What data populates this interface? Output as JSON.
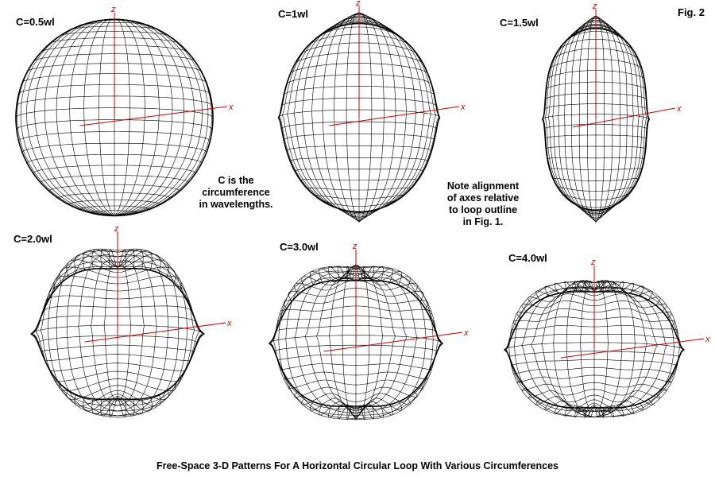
{
  "figure_label": "Fig. 2",
  "caption": "Free-Space 3-D Patterns For A Horizontal Circular Loop With Various Circumferences",
  "note_left": [
    "C is the",
    "circumference",
    "in wavelengths."
  ],
  "note_right": [
    "Note alignment",
    "of axes relative",
    "to loop outline",
    "in Fig. 1."
  ],
  "axis_labels": {
    "z": "z",
    "x": "x"
  },
  "patterns": [
    {
      "label": "C=0.5wl",
      "lobes": 1,
      "colors": {
        "mesh": "#000000",
        "axis": "#cc0000"
      }
    },
    {
      "label": "C=1wl",
      "lobes": 2
    },
    {
      "label": "C=1.5wl",
      "lobes": 2
    },
    {
      "label": "C=2.0wl",
      "lobes": 4
    },
    {
      "label": "C=3.0wl",
      "lobes": 6
    },
    {
      "label": "C=4.0wl",
      "lobes": 8
    }
  ]
}
